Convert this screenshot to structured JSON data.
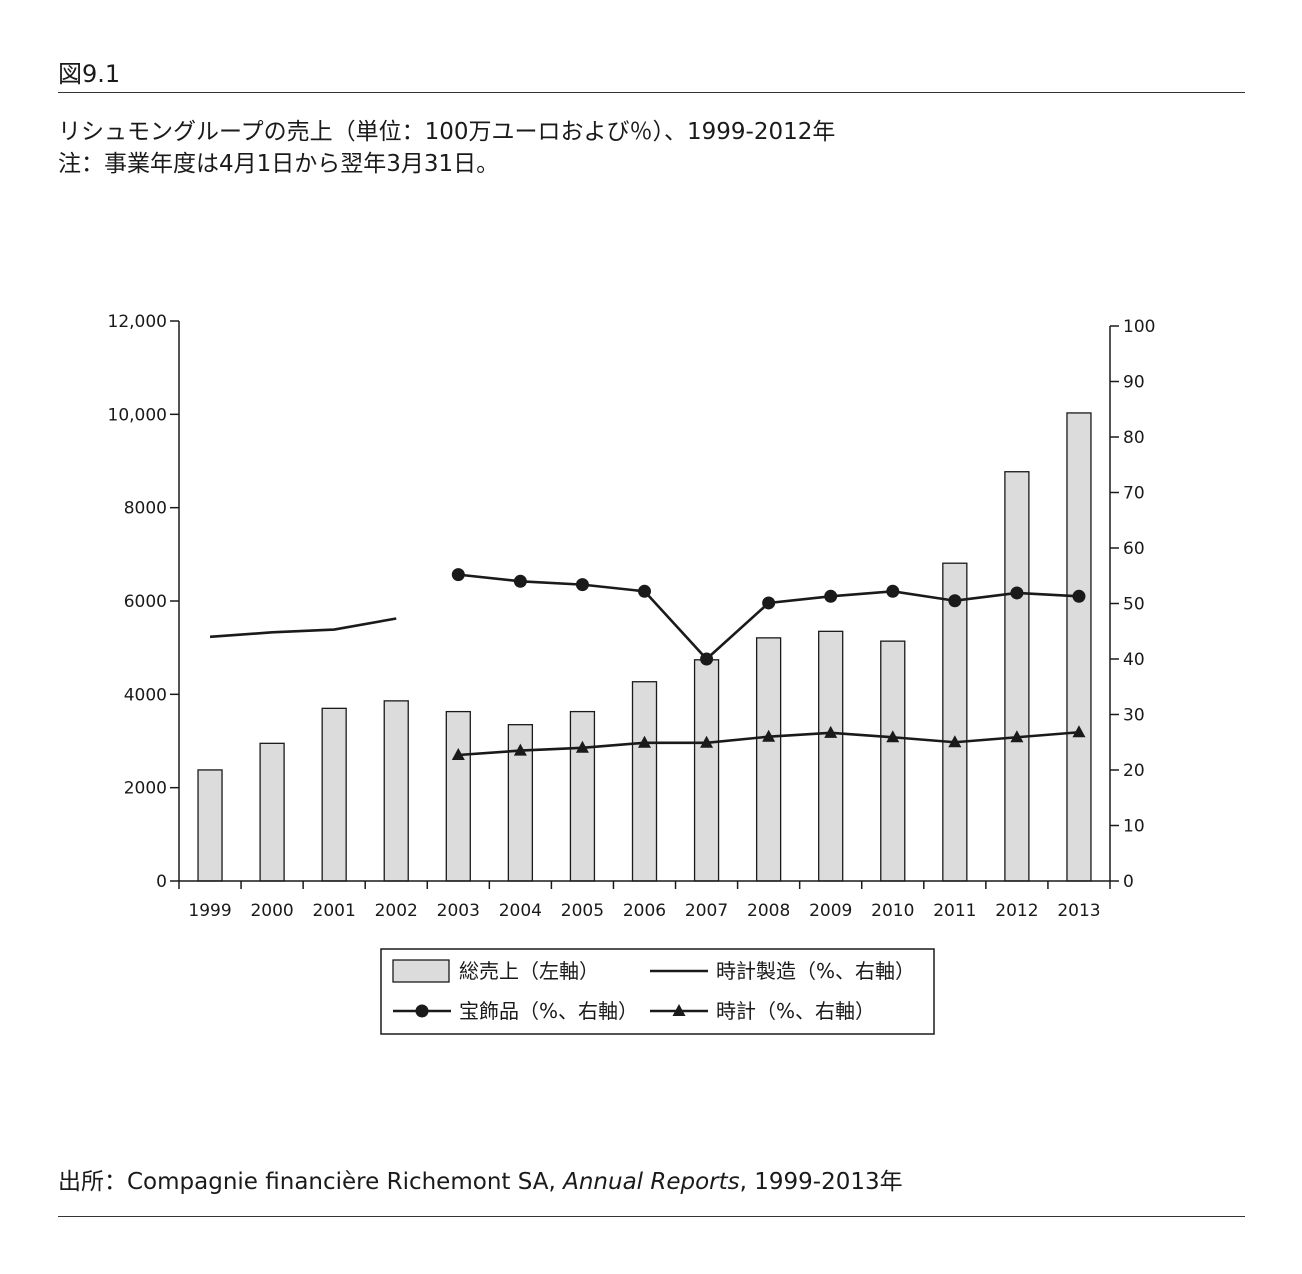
{
  "figure_label": "図9.1",
  "caption": {
    "line1": "リシュモングループの売上（単位：100万ユーロおよび％）、1999-2012年",
    "line2": "注：事業年度は4月1日から翌年3月31日。"
  },
  "source": {
    "prefix": "出所：Compagnie financière Richemont SA, ",
    "italic": "Annual Reports",
    "suffix": ", 1999-2013年"
  },
  "chart_data": {
    "type": "bar",
    "title": "",
    "categories": [
      "1999",
      "2000",
      "2001",
      "2002",
      "2003",
      "2004",
      "2005",
      "2006",
      "2007",
      "2008",
      "2009",
      "2010",
      "2011",
      "2012",
      "2013"
    ],
    "y_left": {
      "ylim": [
        0,
        12000
      ],
      "ticks": [
        0,
        2000,
        4000,
        6000,
        8000,
        10000,
        12000
      ],
      "tick_labels": [
        "0",
        "2000",
        "4000",
        "6000",
        "8000",
        "10,000",
        "12,000"
      ]
    },
    "y_right": {
      "ylim": [
        0,
        100
      ],
      "ticks": [
        0,
        10,
        20,
        30,
        40,
        50,
        60,
        70,
        80,
        90,
        100
      ],
      "tick_labels": [
        "0",
        "10",
        "20",
        "30",
        "40",
        "50",
        "60",
        "70",
        "80",
        "90",
        "100"
      ]
    },
    "grid": false,
    "legend_position": "bottom-center",
    "series": [
      {
        "name": "総売上（左軸）",
        "type": "bar",
        "axis": "left",
        "color": "#dcdcdc",
        "values": [
          2380,
          2950,
          3700,
          3860,
          3630,
          3350,
          3630,
          4270,
          4740,
          5210,
          5350,
          5140,
          6810,
          8770,
          10030
        ]
      },
      {
        "name": "時計製造（%、右軸）",
        "type": "line",
        "axis": "right",
        "marker": "none",
        "color": "#1a1a1a",
        "values": [
          44,
          44.8,
          45.3,
          47.3,
          null,
          null,
          null,
          null,
          null,
          null,
          null,
          null,
          null,
          null,
          null
        ]
      },
      {
        "name": "宝飾品（%、右軸）",
        "type": "line",
        "axis": "right",
        "marker": "circle",
        "color": "#1a1a1a",
        "values": [
          null,
          null,
          null,
          null,
          55.2,
          54,
          53.4,
          52.2,
          40,
          50.1,
          51.3,
          52.2,
          50.5,
          51.9,
          51.3
        ]
      },
      {
        "name": "時計（%、右軸）",
        "type": "line",
        "axis": "right",
        "marker": "triangle",
        "color": "#1a1a1a",
        "values": [
          null,
          null,
          null,
          null,
          22.7,
          23.5,
          24,
          24.9,
          24.9,
          26,
          26.7,
          25.9,
          25,
          25.9,
          26.8
        ]
      }
    ]
  }
}
